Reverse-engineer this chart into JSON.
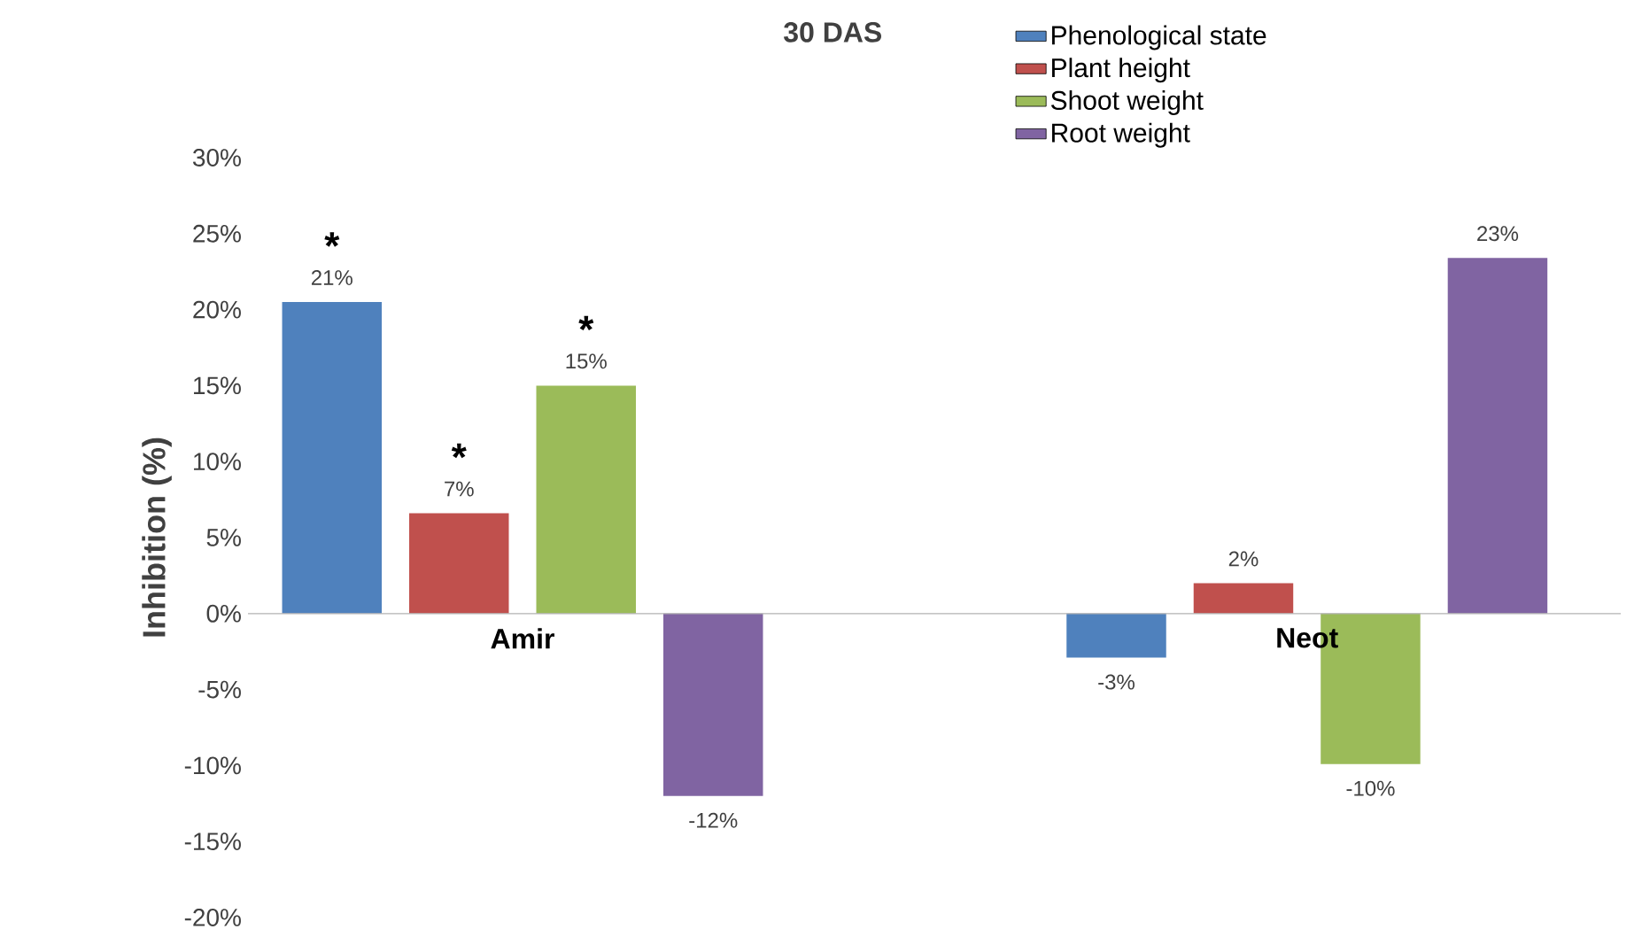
{
  "chart_data": {
    "type": "bar",
    "title": "30 DAS",
    "ylabel": "Inhibition (%)",
    "categories": [
      "Amir",
      "Neot"
    ],
    "series": [
      {
        "name": "Phenological state",
        "color": "#4f81bd",
        "values": [
          20.5,
          -2.9
        ],
        "value_labels": [
          "21%",
          "-3%"
        ]
      },
      {
        "name": "Plant height",
        "color": "#c0504d",
        "values": [
          6.6,
          2.0
        ],
        "value_labels": [
          "7%",
          "2%"
        ]
      },
      {
        "name": "Shoot weight",
        "color": "#9bbb59",
        "values": [
          15.0,
          -9.9
        ],
        "value_labels": [
          "15%",
          "-10%"
        ]
      },
      {
        "name": "Root weight",
        "color": "#8064a2",
        "values": [
          -12.0,
          23.4
        ],
        "value_labels": [
          "-12%",
          "23%"
        ]
      }
    ],
    "ylim": [
      -20,
      30
    ],
    "yticks": [
      {
        "value": -20,
        "label": "-20%"
      },
      {
        "value": -15,
        "label": "-15%"
      },
      {
        "value": -10,
        "label": "-10%"
      },
      {
        "value": -5,
        "label": "-5%"
      },
      {
        "value": 0,
        "label": "0%"
      },
      {
        "value": 5,
        "label": "5%"
      },
      {
        "value": 10,
        "label": "10%"
      },
      {
        "value": 15,
        "label": "15%"
      },
      {
        "value": 20,
        "label": "20%"
      },
      {
        "value": 25,
        "label": "25%"
      },
      {
        "value": 30,
        "label": "30%"
      }
    ],
    "legend": "top right",
    "annotations": [
      "*",
      "*",
      "*"
    ]
  }
}
